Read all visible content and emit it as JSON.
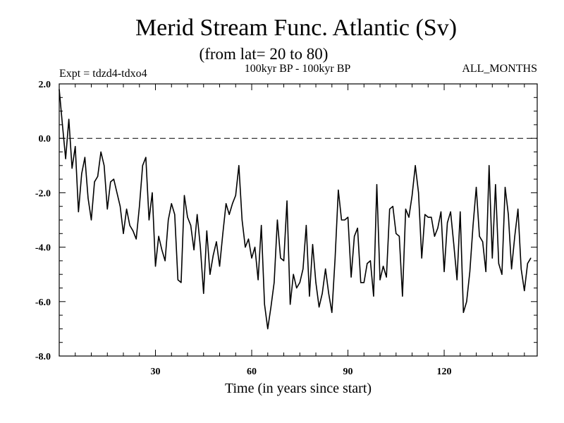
{
  "chart_data": {
    "type": "line",
    "title": "Merid Stream Func. Atlantic (Sv)",
    "subtitle": "(from lat= 20 to 80)",
    "annotation_left": "Expt = tdzd4-tdxo4",
    "annotation_center": "100kyr BP - 100kyr BP",
    "annotation_right": "ALL_MONTHS",
    "xlabel": "Time (in years since start)",
    "ylabel": "",
    "xlim": [
      0,
      149
    ],
    "ylim": [
      -8,
      2
    ],
    "x_ticks": [
      30,
      60,
      90,
      120
    ],
    "x_tick_labels": [
      "30",
      "60",
      "90",
      "120"
    ],
    "y_ticks": [
      2,
      0,
      -2,
      -4,
      -6,
      -8
    ],
    "y_tick_labels": [
      "2.0",
      "0.0",
      "-2.0",
      "-4.0",
      "-6.0",
      "-8.0"
    ],
    "reference_line": 0,
    "series": [
      {
        "name": "Merid Stream Func. Atlantic",
        "x_start": 0,
        "x_step": 1,
        "values": [
          1.8,
          0.5,
          -0.75,
          0.7,
          -1.1,
          -0.3,
          -2.7,
          -1.3,
          -0.7,
          -2.2,
          -3.0,
          -1.6,
          -1.4,
          -0.5,
          -1.0,
          -2.6,
          -1.6,
          -1.5,
          -2.0,
          -2.5,
          -3.5,
          -2.6,
          -3.2,
          -3.4,
          -3.7,
          -2.5,
          -1.0,
          -0.7,
          -3.0,
          -2.0,
          -4.7,
          -3.6,
          -4.1,
          -4.5,
          -3.0,
          -2.4,
          -2.8,
          -5.2,
          -5.3,
          -2.1,
          -2.9,
          -3.2,
          -4.1,
          -2.8,
          -4.0,
          -5.7,
          -3.4,
          -5.0,
          -4.3,
          -3.8,
          -4.7,
          -3.5,
          -2.4,
          -2.8,
          -2.4,
          -2.1,
          -1.0,
          -3.0,
          -4.0,
          -3.7,
          -4.4,
          -4.0,
          -5.2,
          -3.2,
          -6.1,
          -7.0,
          -6.2,
          -5.3,
          -3.0,
          -4.4,
          -4.5,
          -2.3,
          -6.1,
          -5.0,
          -5.5,
          -5.3,
          -4.8,
          -3.2,
          -5.8,
          -3.9,
          -5.3,
          -6.2,
          -5.7,
          -4.8,
          -5.7,
          -6.4,
          -4.4,
          -1.9,
          -3.0,
          -3.0,
          -2.9,
          -5.1,
          -3.6,
          -3.3,
          -5.3,
          -5.3,
          -4.6,
          -4.5,
          -5.8,
          -1.7,
          -5.2,
          -4.7,
          -5.1,
          -2.6,
          -2.5,
          -3.5,
          -3.6,
          -5.8,
          -2.6,
          -2.9,
          -2.1,
          -1.0,
          -2.0,
          -4.4,
          -2.8,
          -2.9,
          -2.9,
          -3.6,
          -3.3,
          -2.7,
          -4.9,
          -3.1,
          -2.7,
          -3.9,
          -5.2,
          -2.7,
          -6.4,
          -6.0,
          -4.9,
          -3.2,
          -1.8,
          -3.6,
          -3.8,
          -4.9,
          -1.0,
          -4.4,
          -1.7,
          -4.6,
          -5.0,
          -1.8,
          -2.8,
          -4.8,
          -3.6,
          -2.6,
          -4.8,
          -5.6,
          -4.6,
          -4.4
        ]
      }
    ]
  }
}
